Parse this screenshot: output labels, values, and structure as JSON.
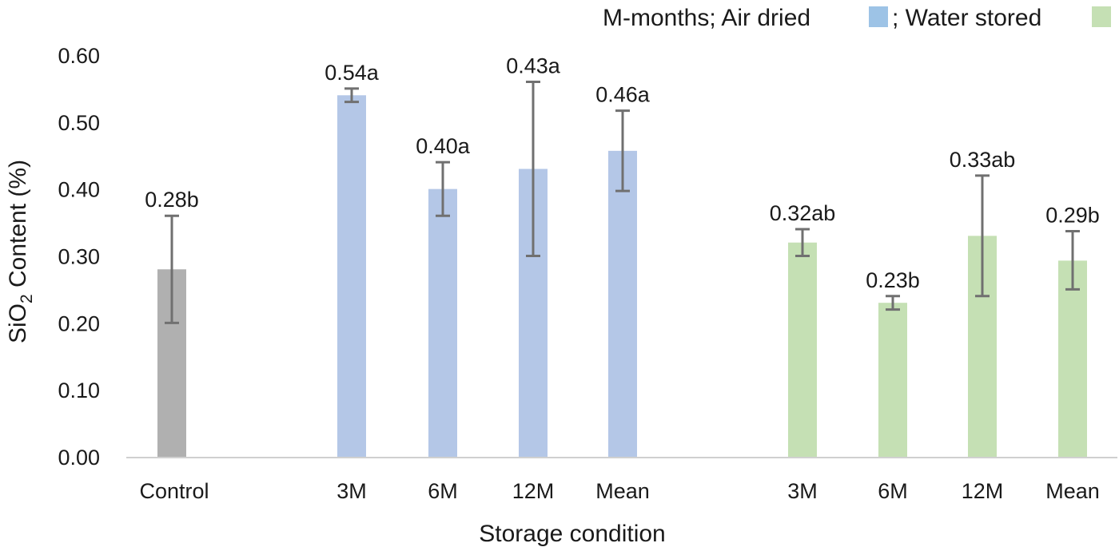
{
  "chart_data": {
    "type": "bar",
    "title": "",
    "xlabel": "Storage condition",
    "ylabel_main": "SiO",
    "ylabel_sub": "2",
    "ylabel_rest": " Content (%)",
    "ylim": [
      0,
      0.6
    ],
    "yticks": [
      "0.00",
      "0.10",
      "0.20",
      "0.30",
      "0.40",
      "0.50",
      "0.60"
    ],
    "legend": {
      "prefix": "M-months; Air dried",
      "air_label": "; Water stored",
      "water_label": "",
      "air_color": "#9dc3e6",
      "water_color": "#c5e0b4"
    },
    "colors": {
      "control": "#b0b0b0",
      "air": "#b4c7e7",
      "water": "#c5e0b4",
      "error": "#707070",
      "axis": "#d0d0d0"
    },
    "bars": [
      {
        "category": "Control",
        "group": "control",
        "value": 0.28,
        "err_low": 0.2,
        "err_high": 0.36,
        "label": "0.28b"
      },
      {
        "category": "3M",
        "group": "air",
        "value": 0.54,
        "err_low": 0.53,
        "err_high": 0.55,
        "label": "0.54a"
      },
      {
        "category": "6M",
        "group": "air",
        "value": 0.4,
        "err_low": 0.36,
        "err_high": 0.44,
        "label": "0.40a"
      },
      {
        "category": "12M",
        "group": "air",
        "value": 0.43,
        "err_low": 0.3,
        "err_high": 0.56,
        "label": "0.43a"
      },
      {
        "category": "Mean",
        "group": "air",
        "value": 0.457,
        "err_low": 0.397,
        "err_high": 0.517,
        "label": "0.46a"
      },
      {
        "category": "3M",
        "group": "water",
        "value": 0.32,
        "err_low": 0.3,
        "err_high": 0.34,
        "label": "0.32ab"
      },
      {
        "category": "6M",
        "group": "water",
        "value": 0.23,
        "err_low": 0.22,
        "err_high": 0.24,
        "label": "0.23b"
      },
      {
        "category": "12M",
        "group": "water",
        "value": 0.33,
        "err_low": 0.24,
        "err_high": 0.42,
        "label": "0.33ab"
      },
      {
        "category": "Mean",
        "group": "water",
        "value": 0.293,
        "err_low": 0.25,
        "err_high": 0.337,
        "label": "0.29b"
      }
    ]
  }
}
